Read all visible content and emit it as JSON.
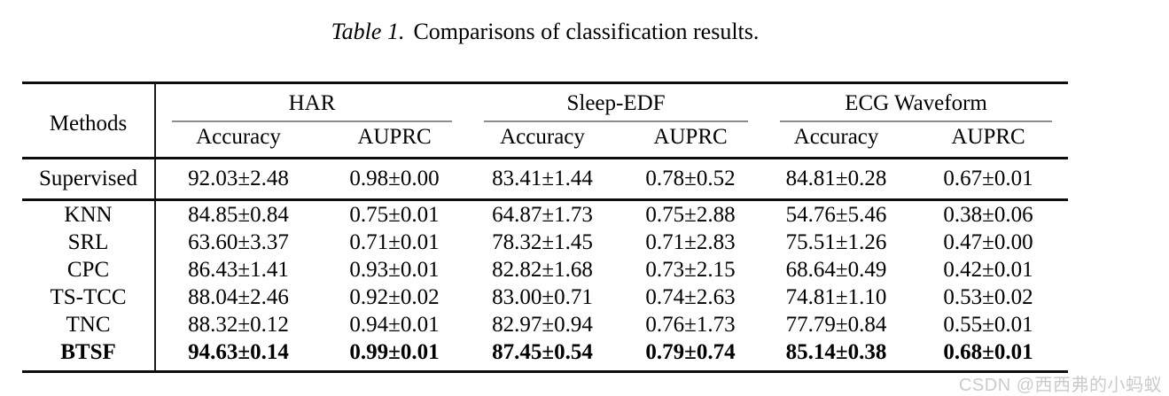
{
  "caption": {
    "label": "Table 1.",
    "text": "Comparisons of classification results."
  },
  "table": {
    "methods_header": "Methods",
    "groups": [
      {
        "name": "HAR",
        "subcols": [
          "Accuracy",
          "AUPRC"
        ]
      },
      {
        "name": "Sleep-EDF",
        "subcols": [
          "Accuracy",
          "AUPRC"
        ]
      },
      {
        "name": "ECG Waveform",
        "subcols": [
          "Accuracy",
          "AUPRC"
        ]
      }
    ],
    "supervised": {
      "method": "Supervised",
      "values": [
        "92.03±2.48",
        "0.98±0.00",
        "83.41±1.44",
        "0.78±0.52",
        "84.81±0.28",
        "0.67±0.01"
      ],
      "bold": false
    },
    "rows": [
      {
        "method": "KNN",
        "values": [
          "84.85±0.84",
          "0.75±0.01",
          "64.87±1.73",
          "0.75±2.88",
          "54.76±5.46",
          "0.38±0.06"
        ],
        "bold": false
      },
      {
        "method": "SRL",
        "values": [
          "63.60±3.37",
          "0.71±0.01",
          "78.32±1.45",
          "0.71±2.83",
          "75.51±1.26",
          "0.47±0.00"
        ],
        "bold": false
      },
      {
        "method": "CPC",
        "values": [
          "86.43±1.41",
          "0.93±0.01",
          "82.82±1.68",
          "0.73±2.15",
          "68.64±0.49",
          "0.42±0.01"
        ],
        "bold": false
      },
      {
        "method": "TS-TCC",
        "values": [
          "88.04±2.46",
          "0.92±0.02",
          "83.00±0.71",
          "0.74±2.63",
          "74.81±1.10",
          "0.53±0.02"
        ],
        "bold": false
      },
      {
        "method": "TNC",
        "values": [
          "88.32±0.12",
          "0.94±0.01",
          "82.97±0.94",
          "0.76±1.73",
          "77.79±0.84",
          "0.55±0.01"
        ],
        "bold": false
      },
      {
        "method": "BTSF",
        "values": [
          "94.63±0.14",
          "0.99±0.01",
          "87.45±0.54",
          "0.79±0.74",
          "85.14±0.38",
          "0.68±0.01"
        ],
        "bold": true
      }
    ]
  },
  "watermark": "CSDN @西西弗的小蚂蚁",
  "colors": {
    "rule": "#0d0d0d",
    "cmidrule": "#8c8c8c",
    "text": "#000000",
    "watermark": "#cbcbcb",
    "background": "#ffffff"
  }
}
